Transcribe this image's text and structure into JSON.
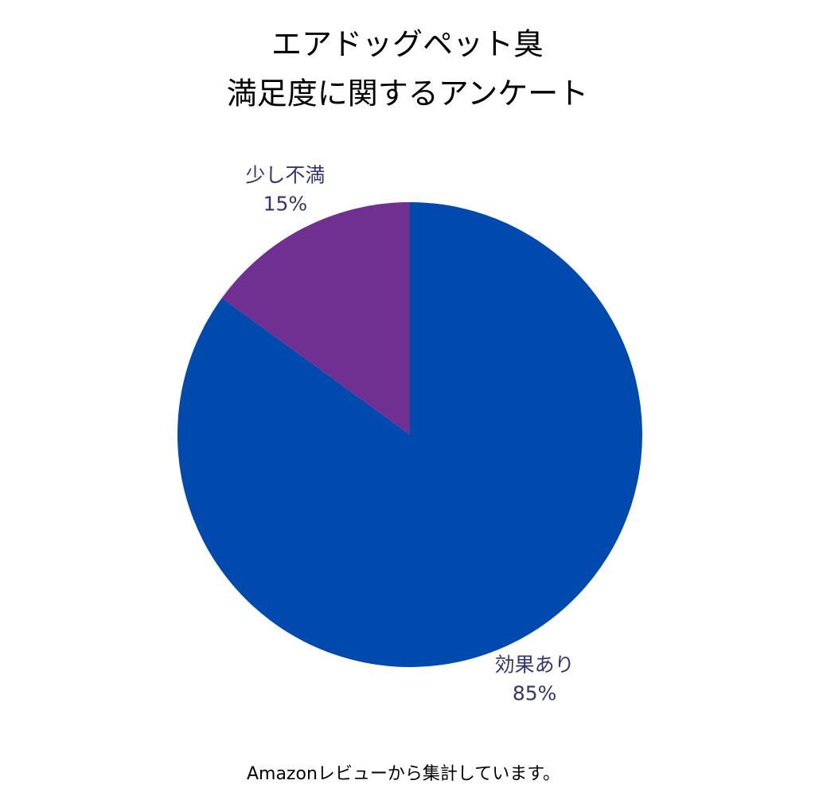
{
  "chart_data": {
    "type": "pie",
    "title": [
      "エアドッグペット臭",
      "満足度に関するアンケート"
    ],
    "categories": [
      "効果あり",
      "少し不満"
    ],
    "values": [
      85,
      15
    ],
    "value_labels": [
      "85%",
      "15%"
    ],
    "colors": [
      "#004aad",
      "#703092"
    ],
    "note": "Amazonレビューから集計しています。"
  }
}
